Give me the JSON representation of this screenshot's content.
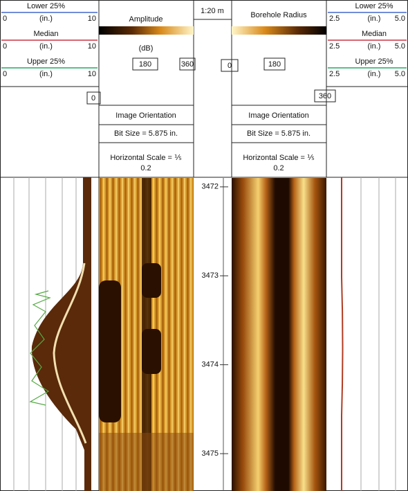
{
  "left_header": {
    "curves": [
      {
        "name": "Lower 25%",
        "min": "0",
        "unit": "(in.)",
        "max": "10"
      },
      {
        "name": "Median",
        "min": "0",
        "unit": "(in.)",
        "max": "10"
      },
      {
        "name": "Upper 25%",
        "min": "0",
        "unit": "(in.)",
        "max": "10"
      }
    ],
    "offset": "0"
  },
  "amplitude_header": {
    "title": "Amplitude",
    "unit": "(dB)",
    "scale_mid": "180",
    "scale_end": "360",
    "orientation": "Image Orientation",
    "bit_size": "Bit Size = 5.875 in.",
    "horizontal_scale": "Horizontal Scale = ⅕",
    "scale_value": "0.2"
  },
  "depth_header": {
    "scale": "1:20 m"
  },
  "radius_header": {
    "title": "Borehole Radius",
    "scale_start": "0",
    "scale_mid": "180",
    "scale_end": "360",
    "orientation": "Image Orientation",
    "bit_size": "Bit Size = 5.875 in.",
    "horizontal_scale": "Horizontal Scale = ⅕",
    "scale_value": "0.2"
  },
  "right_header": {
    "curves": [
      {
        "name": "Lower 25%",
        "min": "2.5",
        "unit": "(in.)",
        "max": "5.0"
      },
      {
        "name": "Median",
        "min": "2.5",
        "unit": "(in.)",
        "max": "5.0"
      },
      {
        "name": "Upper 25%",
        "min": "2.5",
        "unit": "(in.)",
        "max": "5.0"
      }
    ]
  },
  "depth_axis": {
    "range": [
      3471.9,
      3475.42
    ],
    "ticks": [
      3472,
      3473,
      3474,
      3475
    ]
  }
}
